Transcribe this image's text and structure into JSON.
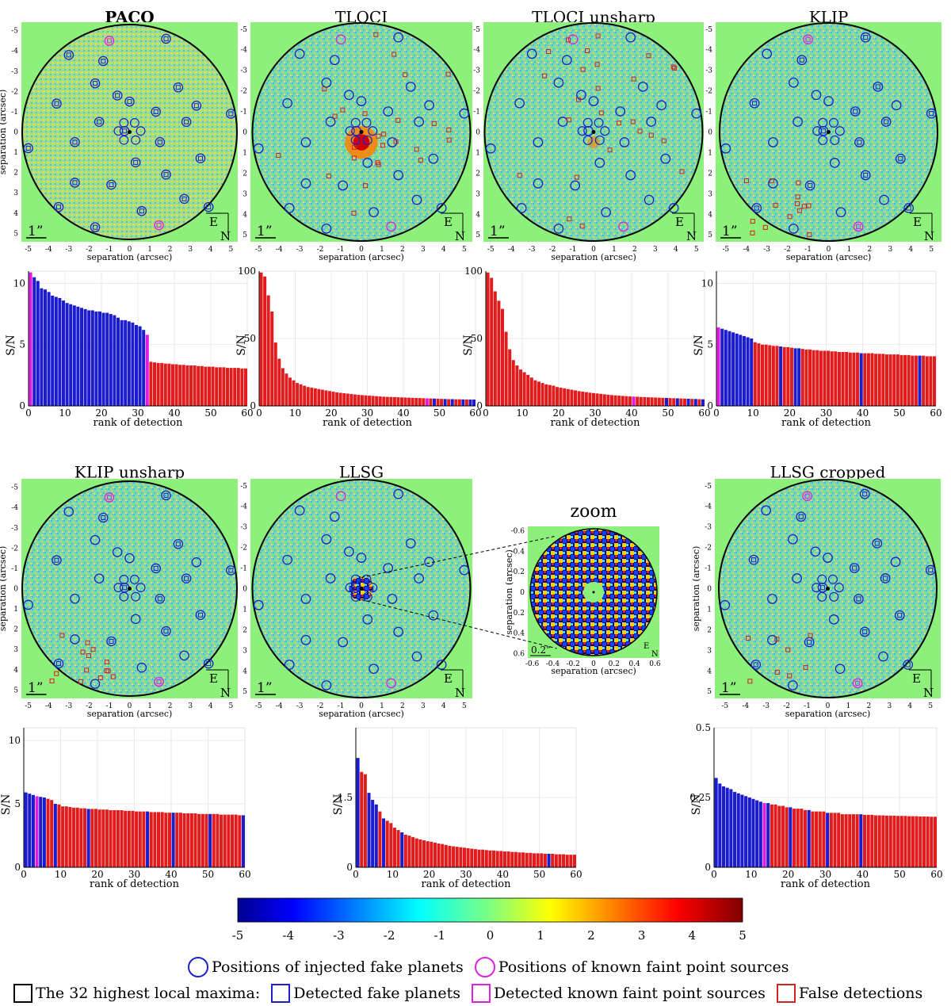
{
  "colors": {
    "map_bg": "#8cf07a",
    "injected": "#1a22c8",
    "known": "#e020e0",
    "false_det": "#d42020",
    "bar_blue": "#1c1ccf",
    "bar_red": "#e11c1c",
    "bar_magenta": "#e01ce0"
  },
  "image_panels": [
    {
      "id": "paco",
      "title": "PACO",
      "bold": true,
      "has_ylabel": true,
      "false_count": 0
    },
    {
      "id": "tloci",
      "title": "TLOCI",
      "bold": false,
      "has_ylabel": false,
      "false_count": 26
    },
    {
      "id": "tloci_unsharp",
      "title": "TLOCI unsharp",
      "bold": false,
      "has_ylabel": false,
      "false_count": 26
    },
    {
      "id": "klip",
      "title": "KLIP",
      "bold": false,
      "has_ylabel": false,
      "false_count": 14
    },
    {
      "id": "klip_unsharp",
      "title": "KLIP unsharp",
      "bold": false,
      "has_ylabel": true,
      "false_count": 14
    },
    {
      "id": "llsg",
      "title": "LLSG",
      "bold": false,
      "has_ylabel": false,
      "false_count": 0
    },
    {
      "id": "llsg_cropped",
      "title": "LLSG cropped",
      "bold": false,
      "has_ylabel": true,
      "false_count": 8
    }
  ],
  "map_axes": {
    "xlabel": "separation (arcsec)",
    "ylabel": "separation (arcsec)",
    "ticks": [
      "-5",
      "-4",
      "-3",
      "-2",
      "-1",
      "0",
      "1",
      "2",
      "3",
      "4",
      "5"
    ],
    "scale_label": "1”",
    "east": "E",
    "north": "N"
  },
  "zoom": {
    "title": "zoom",
    "xlabel": "separation (arcsec)",
    "ylabel": "separation (arcsec)",
    "ticks": [
      "-0.6",
      "-0.4",
      "-0.2",
      "0",
      "0.2",
      "0.4",
      "0.6"
    ],
    "scale_label": "0.2”",
    "east": "E",
    "north": "N"
  },
  "chart_data": [
    {
      "type": "bar",
      "id": "paco",
      "xlabel": "rank of detection",
      "ylabel": "S/N",
      "ylim": [
        0,
        11
      ],
      "yticks": [
        0,
        5,
        10
      ],
      "xticks": [
        0,
        10,
        20,
        30,
        40,
        50,
        60
      ],
      "values": [
        10.9,
        10.5,
        10.2,
        9.6,
        9.5,
        9.3,
        9.0,
        8.9,
        8.8,
        8.6,
        8.4,
        8.3,
        8.2,
        8.1,
        8.0,
        7.9,
        7.8,
        7.8,
        7.7,
        7.7,
        7.6,
        7.6,
        7.5,
        7.4,
        7.2,
        7.0,
        7.0,
        6.9,
        6.8,
        6.6,
        6.5,
        6.2,
        5.8,
        3.6,
        3.55,
        3.5,
        3.5,
        3.45,
        3.45,
        3.4,
        3.4,
        3.35,
        3.35,
        3.3,
        3.3,
        3.3,
        3.25,
        3.25,
        3.2,
        3.2,
        3.2,
        3.15,
        3.15,
        3.15,
        3.1,
        3.1,
        3.1,
        3.1,
        3.05,
        3.05
      ],
      "colors": "MBBBBBBBBBBBBBBBBBBBBBBBBBBBBBBBMRRRRRRRRRRRRRRRRRRRRRRRRRRR"
    },
    {
      "type": "bar",
      "id": "tloci",
      "xlabel": "rank of detection",
      "ylabel": "S/N",
      "ylim": [
        0,
        100
      ],
      "yticks": [
        0,
        50,
        100
      ],
      "xticks": [
        0,
        10,
        20,
        30,
        40,
        50,
        60
      ],
      "values": [
        99,
        96,
        82,
        70,
        47,
        35,
        28,
        24,
        21,
        19,
        17,
        16,
        15,
        14,
        13.5,
        13,
        12.5,
        12,
        11.5,
        11,
        10.5,
        10,
        9.7,
        9.4,
        9.1,
        8.8,
        8.5,
        8.2,
        8,
        7.8,
        7.6,
        7.4,
        7.2,
        7,
        6.8,
        6.7,
        6.6,
        6.5,
        6.4,
        6.3,
        6.2,
        6.1,
        6,
        5.9,
        5.8,
        5.7,
        5.6,
        5.5,
        5.4,
        5.3,
        5.2,
        5.1,
        5,
        5,
        4.9,
        4.9,
        4.8,
        4.8,
        4.7,
        4.7
      ],
      "colors": "RRRRRRRRRRRRRRRRRRRRRRRRRRRRRRRRRRRRRRRRRRRRRRMRBRRBRBRRBRBB"
    },
    {
      "type": "bar",
      "id": "tloci_unsharp",
      "xlabel": "rank of detection",
      "ylabel": "S/N",
      "ylim": [
        0,
        100
      ],
      "yticks": [
        0,
        50,
        100
      ],
      "xticks": [
        0,
        10,
        20,
        30,
        40,
        50,
        60
      ],
      "values": [
        99,
        95,
        85,
        78,
        72,
        55,
        42,
        34,
        30,
        27,
        25,
        23,
        21,
        19,
        18,
        17,
        16,
        15.5,
        15,
        14,
        13.5,
        13,
        12.5,
        12,
        11.5,
        11,
        10.6,
        10.2,
        9.8,
        9.5,
        9.2,
        8.9,
        8.6,
        8.3,
        8,
        7.8,
        7.6,
        7.4,
        7.2,
        7,
        6.9,
        6.8,
        6.6,
        6.5,
        6.4,
        6.3,
        6.2,
        6.1,
        6,
        5.9,
        5.8,
        5.7,
        5.6,
        5.5,
        5.4,
        5.3,
        5.2,
        5.1,
        5,
        4.9
      ],
      "colors": "RRRRRRRRRRRRRRRRRRRRRRRRRRRRRRRRRRRRRRRRMRRRRRRRRBRRBRRBRBRB"
    },
    {
      "type": "bar",
      "id": "klip",
      "xlabel": "rank of detection",
      "ylabel": "S/N",
      "ylim": [
        0,
        11
      ],
      "yticks": [
        0,
        5,
        10
      ],
      "xticks": [
        0,
        10,
        20,
        30,
        40,
        50,
        60
      ],
      "values": [
        6.4,
        6.3,
        6.2,
        6.1,
        6.0,
        5.9,
        5.8,
        5.7,
        5.6,
        5.5,
        5.2,
        5.1,
        5.0,
        5.0,
        4.95,
        4.9,
        4.9,
        4.85,
        4.8,
        4.8,
        4.75,
        4.7,
        4.7,
        4.65,
        4.6,
        4.6,
        4.55,
        4.55,
        4.5,
        4.5,
        4.5,
        4.45,
        4.45,
        4.4,
        4.4,
        4.4,
        4.35,
        4.35,
        4.35,
        4.3,
        4.3,
        4.3,
        4.3,
        4.25,
        4.25,
        4.25,
        4.2,
        4.2,
        4.2,
        4.2,
        4.15,
        4.15,
        4.15,
        4.1,
        4.1,
        4.1,
        4.1,
        4.05,
        4.05,
        4.05
      ],
      "colors": "MBBBBBBBBBRRRRRRRBRRRBBRRRRRRRRRRRRRRRRBRRRRRRRRRRRRRRRBRRRR"
    },
    {
      "type": "bar",
      "id": "klip_unsharp",
      "xlabel": "rank of detection",
      "ylabel": "S/N",
      "ylim": [
        0,
        11
      ],
      "yticks": [
        0,
        5,
        10
      ],
      "xticks": [
        0,
        10,
        20,
        30,
        40,
        50,
        60
      ],
      "values": [
        5.9,
        5.8,
        5.7,
        5.6,
        5.55,
        5.5,
        5.4,
        5.3,
        5.0,
        4.95,
        4.8,
        4.8,
        4.75,
        4.7,
        4.7,
        4.65,
        4.65,
        4.6,
        4.6,
        4.6,
        4.55,
        4.55,
        4.55,
        4.5,
        4.5,
        4.5,
        4.5,
        4.45,
        4.45,
        4.45,
        4.4,
        4.4,
        4.4,
        4.4,
        4.35,
        4.35,
        4.35,
        4.35,
        4.3,
        4.3,
        4.3,
        4.3,
        4.3,
        4.25,
        4.25,
        4.25,
        4.25,
        4.2,
        4.2,
        4.2,
        4.2,
        4.2,
        4.2,
        4.15,
        4.15,
        4.15,
        4.15,
        4.15,
        4.1,
        4.1
      ],
      "colors": "BBBMBBRRBRRRRRRRRBRRRRRRRRRRRRRRRBRRRRRRBRRRRRRRRRBRRRRRRRRB"
    },
    {
      "type": "bar",
      "id": "llsg",
      "xlabel": "rank of detection",
      "ylabel": "S/N",
      "ylim": [
        0,
        3
      ],
      "yticks": [
        0,
        1.5
      ],
      "xticks": [
        0,
        10,
        20,
        30,
        40,
        50,
        60
      ],
      "values": [
        2.35,
        2.05,
        2.0,
        1.6,
        1.45,
        1.35,
        1.2,
        1.05,
        1.0,
        0.95,
        0.85,
        0.8,
        0.75,
        0.7,
        0.68,
        0.65,
        0.62,
        0.6,
        0.58,
        0.56,
        0.55,
        0.53,
        0.51,
        0.5,
        0.48,
        0.46,
        0.45,
        0.44,
        0.43,
        0.42,
        0.41,
        0.4,
        0.39,
        0.38,
        0.38,
        0.37,
        0.36,
        0.36,
        0.35,
        0.35,
        0.34,
        0.34,
        0.33,
        0.33,
        0.32,
        0.32,
        0.31,
        0.31,
        0.3,
        0.3,
        0.3,
        0.29,
        0.29,
        0.29,
        0.28,
        0.28,
        0.28,
        0.27,
        0.27,
        0.27
      ],
      "colors": "BRRBBBRBRRRRBRRRRRRRRRRRRRRRRRRRRRRRRRRRRRRRRRRRRRRRBRRRRRRR"
    },
    {
      "type": "bar",
      "id": "llsg_cropped",
      "xlabel": "rank of detection",
      "ylabel": "S/N",
      "ylim": [
        0,
        0.5
      ],
      "yticks": [
        0,
        0.25,
        0.5
      ],
      "xticks": [
        0,
        10,
        20,
        30,
        40,
        50,
        60
      ],
      "values": [
        0.32,
        0.3,
        0.29,
        0.285,
        0.28,
        0.27,
        0.265,
        0.26,
        0.255,
        0.25,
        0.245,
        0.24,
        0.235,
        0.23,
        0.23,
        0.225,
        0.225,
        0.22,
        0.22,
        0.215,
        0.215,
        0.21,
        0.21,
        0.21,
        0.205,
        0.205,
        0.2,
        0.2,
        0.2,
        0.2,
        0.195,
        0.195,
        0.195,
        0.195,
        0.19,
        0.19,
        0.19,
        0.19,
        0.19,
        0.19,
        0.188,
        0.188,
        0.188,
        0.186,
        0.186,
        0.186,
        0.185,
        0.185,
        0.185,
        0.184,
        0.184,
        0.184,
        0.183,
        0.183,
        0.183,
        0.182,
        0.182,
        0.182,
        0.181,
        0.181
      ],
      "colors": "BBBBBBBBBBBBBMBRRRRRBRRRRBRRRRBRRRRRRRRBRRRRRRRRRRRRRRRRRRRR"
    },
    {
      "type": "heatmap",
      "id": "colorbar",
      "ticks": [
        "-5",
        "-4",
        "-3",
        "-2",
        "-1",
        "0",
        "1",
        "2",
        "3",
        "4",
        "5"
      ],
      "range": [
        -5,
        5
      ]
    }
  ],
  "legend": {
    "injected": "Positions of injected fake planets",
    "known": "Positions of known faint point sources",
    "maxima_label": "The 32 highest local maxima:",
    "detected_fake": "Detected fake planets",
    "detected_known": "Detected known faint point sources",
    "false_detections": "False detections"
  }
}
